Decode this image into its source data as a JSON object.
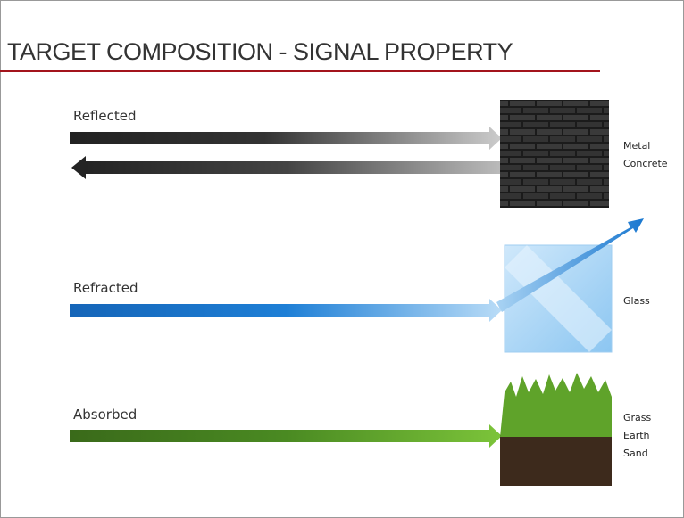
{
  "header": {
    "title": "TARGET COMPOSITION - SIGNAL PROPERTY"
  },
  "rows": [
    {
      "label": "Reflected",
      "materials": [
        "Metal",
        "Concrete"
      ]
    },
    {
      "label": "Refracted",
      "materials": [
        "Glass"
      ]
    },
    {
      "label": "Absorbed",
      "materials": [
        "Grass",
        "Earth",
        "Sand"
      ]
    }
  ]
}
